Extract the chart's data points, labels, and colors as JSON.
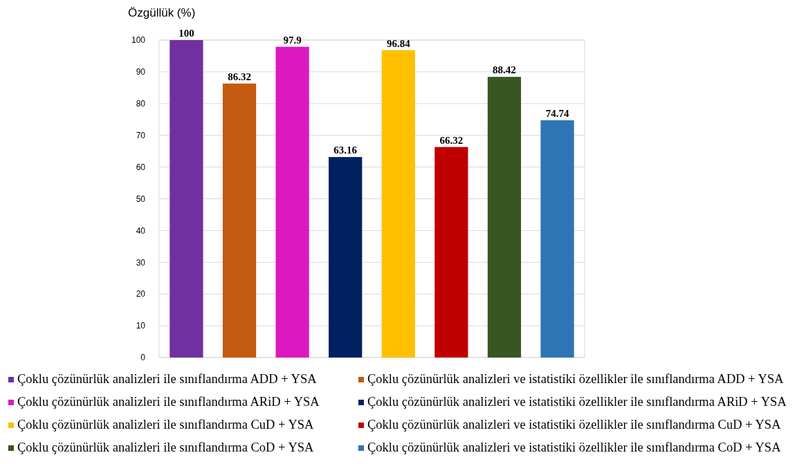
{
  "chart_data": {
    "type": "bar",
    "ylabel": "Özgüllük (%)",
    "categories": [
      null,
      null,
      null,
      null,
      null,
      null,
      null,
      null
    ],
    "ylim": [
      0,
      100
    ],
    "yticks": [
      0,
      10,
      20,
      30,
      40,
      50,
      60,
      70,
      80,
      90,
      100
    ],
    "grid": "y",
    "legend": "bottom",
    "data_labels": true,
    "series": [
      {
        "name": "Çoklu çözünürlük analizleri ile sınıflandırma ADD + YSA",
        "color": "#7030a0",
        "values": [
          100,
          null,
          null,
          null,
          null,
          null,
          null,
          null
        ]
      },
      {
        "name": "Çoklu çözünürlük analizleri ve istatistiki özellikler ile sınıflandırma ADD + YSA",
        "color": "#c55a11",
        "values": [
          null,
          86.32,
          null,
          null,
          null,
          null,
          null,
          null
        ]
      },
      {
        "name": "Çoklu çözünürlük analizleri ile sınıflandırma ARiD + YSA",
        "color": "#dd18c0",
        "values": [
          null,
          null,
          97.9,
          null,
          null,
          null,
          null,
          null
        ]
      },
      {
        "name": "Çoklu çözünürlük analizleri ve istatistiki özellikler ile sınıflandırma ARiD + YSA",
        "color": "#002060",
        "values": [
          null,
          null,
          null,
          63.16,
          null,
          null,
          null,
          null
        ]
      },
      {
        "name": "Çoklu çözünürlük analizleri ile sınıflandırma CuD + YSA",
        "color": "#ffc000",
        "values": [
          null,
          null,
          null,
          null,
          96.84,
          null,
          null,
          null
        ]
      },
      {
        "name": "Çoklu çözünürlük analizleri ve istatistiki özellikler ile sınıflandırma CuD + YSA",
        "color": "#c00000",
        "values": [
          null,
          null,
          null,
          null,
          null,
          66.32,
          null,
          null
        ]
      },
      {
        "name": "Çoklu çözünürlük analizleri ile sınıflandırma CoD + YSA",
        "color": "#375623",
        "values": [
          null,
          null,
          null,
          null,
          null,
          null,
          88.42,
          null
        ]
      },
      {
        "name": "Çoklu çözünürlük analizleri ve istatistiki özellikler ile sınıflandırma CoD + YSA",
        "color": "#2e75b6",
        "values": [
          null,
          null,
          null,
          null,
          null,
          null,
          null,
          74.74
        ]
      }
    ]
  }
}
